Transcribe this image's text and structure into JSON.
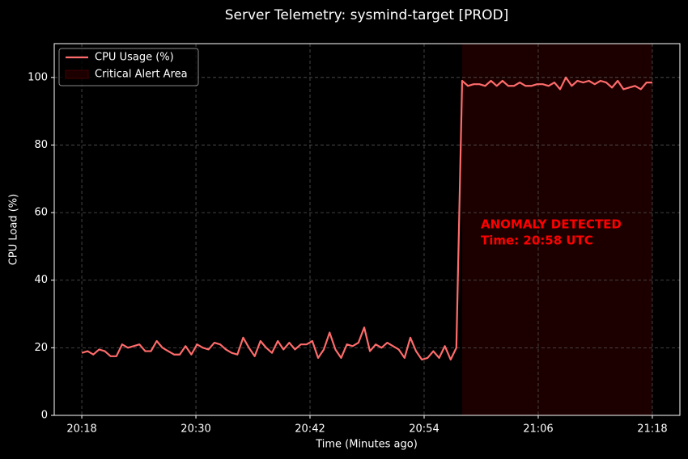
{
  "chart_data": {
    "type": "line",
    "title": "Server Telemetry: sysmind-target [PROD]",
    "xlabel": "Time (Minutes ago)",
    "ylabel": "CPU Load (%)",
    "x": [
      1218,
      1218.61,
      1219.21,
      1219.82,
      1220.42,
      1221.03,
      1221.64,
      1222.24,
      1222.85,
      1223.45,
      1224.06,
      1224.67,
      1225.27,
      1225.88,
      1226.48,
      1227.09,
      1227.7,
      1228.3,
      1228.91,
      1229.52,
      1230.12,
      1230.73,
      1231.33,
      1231.94,
      1232.55,
      1233.15,
      1233.76,
      1234.36,
      1234.97,
      1235.58,
      1236.18,
      1236.79,
      1237.39,
      1238,
      1238.61,
      1239.21,
      1239.82,
      1240.42,
      1241.03,
      1241.64,
      1242.24,
      1242.85,
      1243.45,
      1244.06,
      1244.67,
      1245.27,
      1245.88,
      1246.48,
      1247.09,
      1247.7,
      1248.3,
      1248.91,
      1249.52,
      1250.12,
      1250.73,
      1251.33,
      1251.94,
      1252.55,
      1253.15,
      1253.76,
      1254.36,
      1254.97,
      1255.58,
      1256.18,
      1256.79,
      1257.39,
      1258,
      1258.61,
      1259.21,
      1259.82,
      1260.42,
      1261.03,
      1261.64,
      1262.24,
      1262.85,
      1263.45,
      1264.06,
      1264.67,
      1265.27,
      1265.88,
      1266.48,
      1267.09,
      1267.7,
      1268.3,
      1268.91,
      1269.52,
      1270.12,
      1270.73,
      1271.33,
      1271.94,
      1272.55,
      1273.15,
      1273.76,
      1274.36,
      1274.97,
      1275.58,
      1276.18,
      1276.79,
      1277.39,
      1278
    ],
    "series": [
      {
        "name": "CPU Usage (%)",
        "color": "#ff6b6b",
        "values": [
          18.5,
          19,
          18,
          19.5,
          19,
          17.5,
          17.5,
          21,
          20,
          20.5,
          21,
          19,
          19,
          22,
          20,
          19,
          18,
          18,
          20.5,
          18,
          21,
          20,
          19.5,
          21.5,
          21,
          19.5,
          18.5,
          18,
          23,
          20,
          17.5,
          22,
          20,
          18.5,
          22,
          19.5,
          21.5,
          19.5,
          21,
          21,
          22,
          17,
          19.5,
          24.5,
          19.5,
          17,
          21,
          20.5,
          21.5,
          26,
          19,
          21,
          20,
          21.5,
          20.5,
          19.5,
          17,
          23,
          19,
          16.5,
          17,
          19,
          17,
          20.5,
          16.5,
          20,
          99,
          97.5,
          98,
          98,
          97.5,
          99,
          97.5,
          99,
          97.5,
          97.5,
          98.5,
          97.5,
          97.5,
          98,
          98,
          97.5,
          98.5,
          96.5,
          100,
          97.5,
          99,
          98.5,
          99,
          98,
          99,
          98.5,
          97,
          99,
          96.5,
          97,
          97.5,
          96.5,
          98.5,
          98.5
        ]
      }
    ],
    "highlight": {
      "name": "Critical Alert Area",
      "x": [
        1258,
        1278
      ],
      "color": "#1c0000"
    },
    "annotation": [
      "ANOMALY DETECTED",
      "Time: 20:58 UTC"
    ],
    "annotation_color": "#ff0000",
    "xlim": [
      1215.1,
      1280.9
    ],
    "xticks": [
      {
        "value": 1218,
        "label": "20:18"
      },
      {
        "value": 1230,
        "label": "20:30"
      },
      {
        "value": 1242,
        "label": "20:42"
      },
      {
        "value": 1254,
        "label": "20:54"
      },
      {
        "value": 1266,
        "label": "21:06"
      },
      {
        "value": 1278,
        "label": "21:18"
      }
    ],
    "ylim": [
      0,
      110
    ],
    "yticks": [
      0,
      20,
      40,
      60,
      80,
      100
    ],
    "grid": true,
    "legend": "upper left"
  }
}
